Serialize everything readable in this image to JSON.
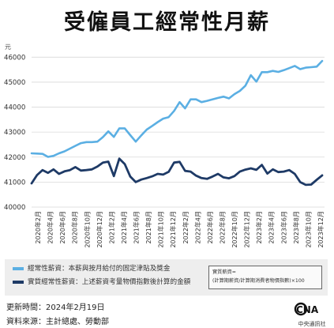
{
  "title": "受僱員工經常性月薪",
  "chart_data": {
    "type": "line",
    "y_unit": "元",
    "ylim": [
      40000,
      46200
    ],
    "yticks": [
      40000,
      41000,
      42000,
      43000,
      44000,
      45000,
      46000
    ],
    "x_tick_labels": [
      "2020年2月",
      "2020年4月",
      "2020年6月",
      "2020年8月",
      "2020年10月",
      "2020年12月",
      "2021年2月",
      "2021年4月",
      "2021年6月",
      "2021年8月",
      "2021年10月",
      "2021年12月",
      "2022年2月",
      "2022年4月",
      "2022年6月",
      "2022年8月",
      "2022年10月",
      "2022年12月",
      "2023年2月",
      "2023年4月",
      "2023年6月",
      "2023年8月",
      "2023年10月",
      "2023年12月"
    ],
    "grid": "horizontal",
    "series": [
      {
        "name": "經常性薪資：本薪與按月給付的固定津貼及獎金",
        "color": "#5bafe3",
        "values": [
          42150,
          42140,
          42130,
          42010,
          42050,
          42150,
          42230,
          42340,
          42450,
          42560,
          42600,
          42600,
          42620,
          42800,
          43030,
          42810,
          43150,
          43150,
          42880,
          42620,
          42870,
          43100,
          43250,
          43400,
          43540,
          43600,
          43850,
          44200,
          43950,
          44310,
          44310,
          44200,
          44250,
          44310,
          44370,
          44420,
          44350,
          44520,
          44650,
          44860,
          45280,
          45020,
          45400,
          45400,
          45450,
          45410,
          45480,
          45560,
          45650,
          45520,
          45580,
          45600,
          45620,
          45850
        ]
      },
      {
        "name": "實質經常性薪資：上述薪資考量物價指數後計算的金額",
        "color": "#1e3a66",
        "values": [
          40950,
          41280,
          41480,
          41370,
          41510,
          41330,
          41430,
          41480,
          41600,
          41460,
          41480,
          41510,
          41620,
          41780,
          41820,
          41240,
          41940,
          41720,
          41220,
          41000,
          41100,
          41160,
          41230,
          41330,
          41300,
          41410,
          41780,
          41810,
          41450,
          41420,
          41260,
          41160,
          41130,
          41220,
          41330,
          41190,
          41150,
          41240,
          41420,
          41500,
          41550,
          41490,
          41690,
          41340,
          41510,
          41400,
          41420,
          41480,
          41330,
          41000,
          40890,
          40900,
          41090,
          41270
        ]
      }
    ]
  },
  "legend_formula": {
    "title": "實質薪資=",
    "body": "(計算期薪資/計算期消費者物價指數)×100"
  },
  "footer": {
    "updated": "更新時間：2024年2月19日",
    "source": "資料來源：主計總處、勞動部"
  },
  "logo": {
    "text": "CNA",
    "org": "中央通訊社"
  }
}
